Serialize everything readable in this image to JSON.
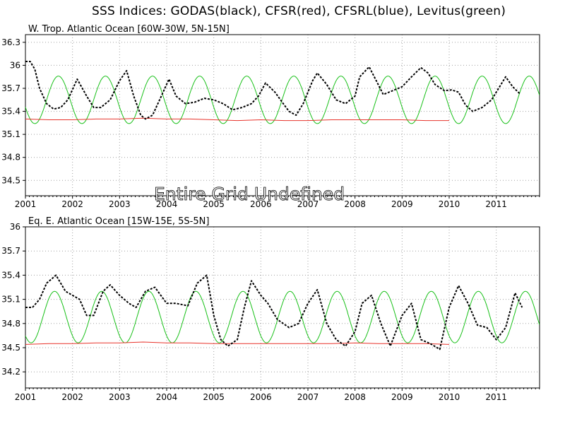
{
  "title": "SSS Indices: GODAS(black), CFSR(red), CFSRL(blue), Levitus(green)",
  "undefined_note": "Entire Grid Undefined",
  "colors": {
    "GODAS": "#000000",
    "CFSR": "#e8342c",
    "CFSRL": "#1a3cff",
    "Levitus": "#18c018",
    "grid": "#a0a0a0"
  },
  "chart_data": [
    {
      "type": "line",
      "title": "W. Trop. Atlantic Ocean [60W-30W, 5N-15N]",
      "xlabel": "",
      "ylabel": "",
      "xlim": [
        2001.0,
        2011.92
      ],
      "ylim": [
        34.3,
        36.4
      ],
      "x_ticks": [
        2001,
        2002,
        2003,
        2004,
        2005,
        2006,
        2007,
        2008,
        2009,
        2010,
        2011
      ],
      "y_ticks": [
        34.5,
        34.8,
        35.1,
        35.4,
        35.7,
        36.0,
        36.3
      ],
      "y_tick_labels": [
        "34.5",
        "34.8",
        "35.1",
        "35.4",
        "35.7",
        "36",
        "36.3"
      ],
      "grid": true,
      "series": [
        {
          "name": "GODAS",
          "style": "dashed",
          "x": [
            2001.0,
            2001.1,
            2001.2,
            2001.3,
            2001.45,
            2001.6,
            2001.75,
            2001.9,
            2002.1,
            2002.3,
            2002.45,
            2002.6,
            2002.8,
            2003.0,
            2003.15,
            2003.3,
            2003.45,
            2003.55,
            2003.7,
            2003.85,
            2004.05,
            2004.2,
            2004.4,
            2004.6,
            2004.8,
            2005.0,
            2005.2,
            2005.4,
            2005.6,
            2005.8,
            2005.95,
            2006.1,
            2006.3,
            2006.5,
            2006.6,
            2006.75,
            2006.9,
            2007.1,
            2007.2,
            2007.4,
            2007.6,
            2007.8,
            2008.0,
            2008.1,
            2008.3,
            2008.45,
            2008.6,
            2008.8,
            2009.0,
            2009.2,
            2009.4,
            2009.55,
            2009.7,
            2009.9,
            2010.05,
            2010.2,
            2010.35,
            2010.5,
            2010.7,
            2010.9,
            2011.05,
            2011.2,
            2011.35,
            2011.5
          ],
          "y": [
            36.05,
            36.05,
            35.95,
            35.7,
            35.5,
            35.43,
            35.45,
            35.55,
            35.82,
            35.6,
            35.45,
            35.45,
            35.55,
            35.8,
            35.93,
            35.6,
            35.35,
            35.3,
            35.35,
            35.55,
            35.82,
            35.6,
            35.5,
            35.52,
            35.57,
            35.55,
            35.5,
            35.42,
            35.45,
            35.5,
            35.6,
            35.77,
            35.65,
            35.48,
            35.4,
            35.35,
            35.5,
            35.8,
            35.9,
            35.75,
            35.55,
            35.5,
            35.6,
            35.85,
            35.98,
            35.8,
            35.62,
            35.67,
            35.72,
            35.85,
            35.97,
            35.9,
            35.75,
            35.67,
            35.68,
            35.65,
            35.48,
            35.4,
            35.45,
            35.55,
            35.7,
            35.85,
            35.72,
            35.63
          ]
        },
        {
          "name": "CFSR",
          "style": "solid",
          "x": [
            2001.0,
            2001.5,
            2002.0,
            2002.5,
            2003.0,
            2003.5,
            2004.0,
            2004.5,
            2005.0,
            2005.5,
            2006.0,
            2006.5,
            2007.0,
            2007.5,
            2008.0,
            2008.5,
            2009.0,
            2009.5,
            2010.0
          ],
          "y": [
            35.3,
            35.29,
            35.29,
            35.3,
            35.3,
            35.31,
            35.3,
            35.3,
            35.29,
            35.28,
            35.29,
            35.28,
            35.28,
            35.29,
            35.29,
            35.29,
            35.29,
            35.28,
            35.28
          ]
        },
        {
          "name": "Levitus",
          "style": "solid",
          "climatology": {
            "start": 2001.0,
            "end": 2011.92,
            "mean": 35.55,
            "amp": 0.31,
            "peak_phase": 0.7
          }
        }
      ]
    },
    {
      "type": "line",
      "title": "Eq. E. Atlantic Ocean [15W-15E, 5S-5N]",
      "xlabel": "",
      "ylabel": "",
      "xlim": [
        2001.0,
        2011.92
      ],
      "ylim": [
        34.0,
        36.0
      ],
      "x_ticks": [
        2001,
        2002,
        2003,
        2004,
        2005,
        2006,
        2007,
        2008,
        2009,
        2010,
        2011
      ],
      "y_ticks": [
        34.2,
        34.5,
        34.8,
        35.1,
        35.4,
        35.7,
        36.0
      ],
      "y_tick_labels": [
        "34.2",
        "34.5",
        "34.8",
        "35.1",
        "35.4",
        "35.7",
        "36"
      ],
      "grid": true,
      "series": [
        {
          "name": "GODAS",
          "style": "dashed",
          "x": [
            2001.0,
            2001.15,
            2001.3,
            2001.45,
            2001.65,
            2001.85,
            2002.0,
            2002.15,
            2002.3,
            2002.45,
            2002.65,
            2002.8,
            2003.0,
            2003.2,
            2003.35,
            2003.55,
            2003.75,
            2004.0,
            2004.2,
            2004.45,
            2004.65,
            2004.85,
            2005.0,
            2005.15,
            2005.3,
            2005.5,
            2005.65,
            2005.8,
            2006.0,
            2006.15,
            2006.35,
            2006.6,
            2006.8,
            2007.0,
            2007.2,
            2007.4,
            2007.6,
            2007.8,
            2008.0,
            2008.15,
            2008.35,
            2008.55,
            2008.75,
            2009.0,
            2009.2,
            2009.4,
            2009.6,
            2009.8,
            2010.0,
            2010.2,
            2010.4,
            2010.6,
            2010.8,
            2011.0,
            2011.2,
            2011.4,
            2011.55
          ],
          "y": [
            35.0,
            35.0,
            35.1,
            35.3,
            35.4,
            35.2,
            35.15,
            35.1,
            34.9,
            34.9,
            35.2,
            35.28,
            35.15,
            35.05,
            35.0,
            35.2,
            35.25,
            35.05,
            35.05,
            35.02,
            35.3,
            35.4,
            34.9,
            34.6,
            34.52,
            34.6,
            35.0,
            35.33,
            35.15,
            35.05,
            34.85,
            34.75,
            34.8,
            35.05,
            35.22,
            34.8,
            34.6,
            34.52,
            34.7,
            35.05,
            35.15,
            34.8,
            34.52,
            34.9,
            35.05,
            34.6,
            34.55,
            34.48,
            35.0,
            35.27,
            35.05,
            34.78,
            34.75,
            34.6,
            34.75,
            35.18,
            35.0
          ]
        },
        {
          "name": "CFSR",
          "style": "solid",
          "x": [
            2001.0,
            2001.5,
            2002.0,
            2002.5,
            2003.0,
            2003.5,
            2004.0,
            2004.5,
            2005.0,
            2005.5,
            2006.0,
            2006.5,
            2007.0,
            2007.5,
            2008.0,
            2008.5,
            2009.0,
            2009.5,
            2010.0
          ],
          "y": [
            34.54,
            34.55,
            34.55,
            34.56,
            34.56,
            34.57,
            34.56,
            34.56,
            34.55,
            34.55,
            34.55,
            34.55,
            34.55,
            34.55,
            34.56,
            34.55,
            34.55,
            34.55,
            34.54
          ]
        },
        {
          "name": "Levitus",
          "style": "solid",
          "climatology": {
            "start": 2001.0,
            "end": 2011.92,
            "mean": 34.88,
            "amp": 0.32,
            "peak_phase": 0.62
          }
        }
      ]
    }
  ]
}
